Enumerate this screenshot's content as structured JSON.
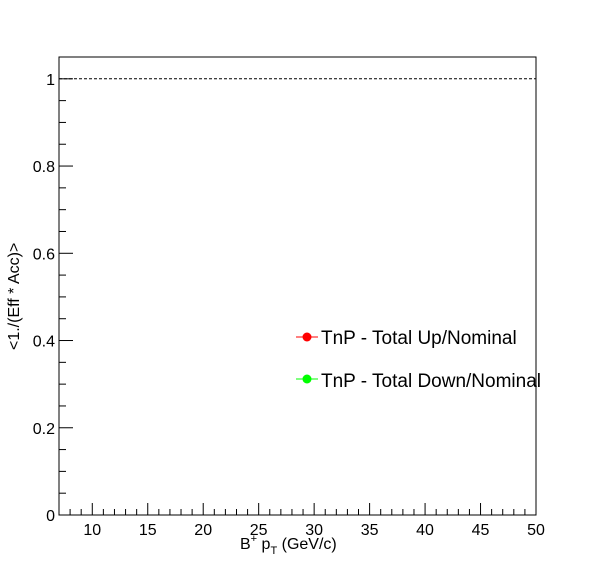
{
  "chart_data": {
    "type": "scatter",
    "title": "",
    "xlabel": {
      "base": "B",
      "sup": "+",
      "mid": " p",
      "sub": "T",
      "tail": " (GeV/c)"
    },
    "ylabel": "<1./(Eff * Acc)>",
    "xlim": [
      7,
      50
    ],
    "ylim": [
      0,
      1.05
    ],
    "x_ticks": [
      10,
      15,
      20,
      25,
      30,
      35,
      40,
      45,
      50
    ],
    "y_ticks": [
      0,
      0.2,
      0.4,
      0.6,
      0.8,
      1
    ],
    "x_tick_labels": [
      "10",
      "15",
      "20",
      "25",
      "30",
      "35",
      "40",
      "45",
      "50"
    ],
    "y_tick_labels": [
      "0",
      "0.2",
      "0.4",
      "0.6",
      "0.8",
      "1"
    ],
    "reference_line": {
      "y": 1,
      "style": "dashed"
    },
    "grid": false,
    "legend_position": "right-middle",
    "series": [
      {
        "name": "TnP - Total Up/Nominal",
        "color": "#ff0000",
        "x": [],
        "y": []
      },
      {
        "name": "TnP - Total Down/Nominal",
        "color": "#00ff00",
        "x": [],
        "y": []
      }
    ]
  }
}
